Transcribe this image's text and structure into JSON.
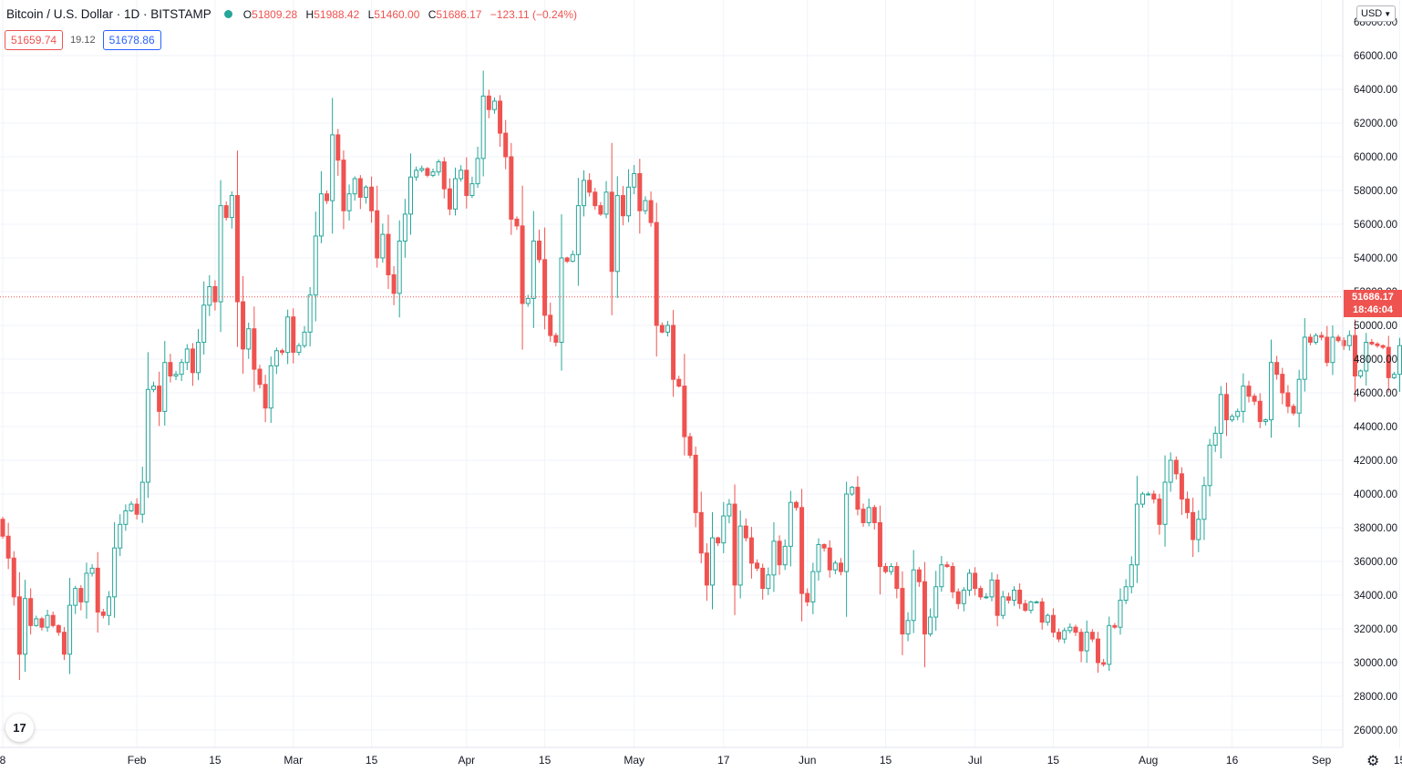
{
  "header": {
    "symbol": "Bitcoin / U.S. Dollar · 1D · BITSTAMP",
    "status_color": "#26a69a",
    "ohlc": {
      "o_label": "O",
      "o": "51809.28",
      "h_label": "H",
      "h": "51988.42",
      "l_label": "L",
      "l": "51460.00",
      "c_label": "C",
      "c": "51686.17",
      "change": "−123.11 (−0.24%)"
    }
  },
  "quote": {
    "bid": "51659.74",
    "spread": "19.12",
    "ask": "51678.86"
  },
  "currency_button": "USD",
  "logo_text": "17",
  "last_price": {
    "value": "51686.17",
    "countdown": "18:46:04"
  },
  "colors": {
    "up": "#26a69a",
    "down": "#ef5350",
    "grid": "#f0f3fa",
    "last_line": "#ef5350"
  },
  "chart_data": {
    "type": "candlestick",
    "yticks": [
      26000,
      28000,
      30000,
      32000,
      34000,
      36000,
      38000,
      40000,
      42000,
      44000,
      46000,
      48000,
      50000,
      52000,
      54000,
      56000,
      58000,
      60000,
      62000,
      64000,
      66000
    ],
    "ylim": [
      25000,
      68000
    ],
    "xticks": [
      {
        "label": "8",
        "date": "2021-01-08"
      },
      {
        "label": "Feb",
        "date": "2021-02-01"
      },
      {
        "label": "15",
        "date": "2021-02-15"
      },
      {
        "label": "Mar",
        "date": "2021-03-01"
      },
      {
        "label": "15",
        "date": "2021-03-15"
      },
      {
        "label": "Apr",
        "date": "2021-04-01"
      },
      {
        "label": "15",
        "date": "2021-04-15"
      },
      {
        "label": "May",
        "date": "2021-05-01"
      },
      {
        "label": "17",
        "date": "2021-05-17"
      },
      {
        "label": "Jun",
        "date": "2021-06-01"
      },
      {
        "label": "15",
        "date": "2021-06-15"
      },
      {
        "label": "Jul",
        "date": "2021-07-01"
      },
      {
        "label": "15",
        "date": "2021-07-15"
      },
      {
        "label": "Aug",
        "date": "2021-08-01"
      },
      {
        "label": "16",
        "date": "2021-08-16"
      },
      {
        "label": "Sep",
        "date": "2021-09-01"
      },
      {
        "label": "15",
        "date": "2021-09-15"
      }
    ],
    "first_date": "2021-01-08",
    "closes": [
      37500,
      36200,
      33900,
      30500,
      33800,
      32200,
      32600,
      32100,
      32800,
      32200,
      31800,
      30500,
      33400,
      34400,
      33600,
      35300,
      35600,
      33000,
      32800,
      33900,
      36800,
      38200,
      39000,
      39400,
      38800,
      40700,
      46200,
      46400,
      44900,
      47800,
      47000,
      47100,
      47800,
      48600,
      47200,
      49000,
      51200,
      52300,
      51400,
      57100,
      56400,
      57700,
      51400,
      48600,
      49800,
      47400,
      46500,
      45100,
      47600,
      48500,
      48400,
      50500,
      48400,
      48800,
      49600,
      51800,
      55300,
      57800,
      57400,
      61300,
      59800,
      56800,
      57800,
      58700,
      57600,
      58200,
      56800,
      54000,
      55400,
      53000,
      51900,
      55000,
      56600,
      58800,
      59200,
      59300,
      58900,
      59100,
      59700,
      58100,
      56900,
      58700,
      59200,
      57700,
      58400,
      59900,
      63600,
      62800,
      63300,
      61400,
      60000,
      56300,
      55900,
      51300,
      51600,
      55000,
      53900,
      50600,
      49400,
      49000,
      54000,
      53800,
      54200,
      57100,
      58600,
      57900,
      57100,
      56600,
      57900,
      53200,
      57700,
      56500,
      58200,
      59000,
      56800,
      57400,
      56100,
      50000,
      49600,
      50000,
      46800,
      46400,
      43400,
      42300,
      38900,
      36500,
      34600,
      37400,
      37100,
      38700,
      39400,
      34600,
      38100,
      37400,
      35900,
      35600,
      34400,
      35200,
      37200,
      35800,
      36900,
      39500,
      39200,
      34100,
      33600,
      35400,
      37000,
      36800,
      35500,
      35900,
      35400,
      40000,
      40400,
      39100,
      38300,
      39200,
      38300,
      35700,
      35400,
      35700,
      34400,
      31700,
      32500,
      35500,
      34800,
      31700,
      32700,
      34500,
      35800,
      35700,
      34200,
      33500,
      34300,
      35300,
      34400,
      33900,
      33900,
      34900,
      32800,
      33900,
      33700,
      34300,
      33500,
      33100,
      33600,
      33600,
      32400,
      32800,
      31800,
      31400,
      31900,
      32100,
      31800,
      30700,
      31800,
      31400,
      30000,
      29900,
      32200,
      32100,
      33700,
      34500,
      35800,
      39400,
      40000,
      40000,
      39700,
      38200,
      40700,
      42000,
      41200,
      39700,
      38900,
      37300,
      38500,
      40500,
      42900,
      43600,
      45900,
      44400,
      44600,
      44900,
      46400,
      45800,
      45500,
      44300,
      44400,
      47800,
      47100,
      46000,
      45200,
      44800,
      46800,
      49300,
      49000,
      49400,
      49300,
      47800,
      49300,
      49100,
      48800,
      49400,
      47000,
      47300,
      49000,
      48900,
      48800,
      48700,
      46900,
      47100,
      48800,
      49700,
      50200,
      49900,
      52100,
      51686.17
    ]
  }
}
